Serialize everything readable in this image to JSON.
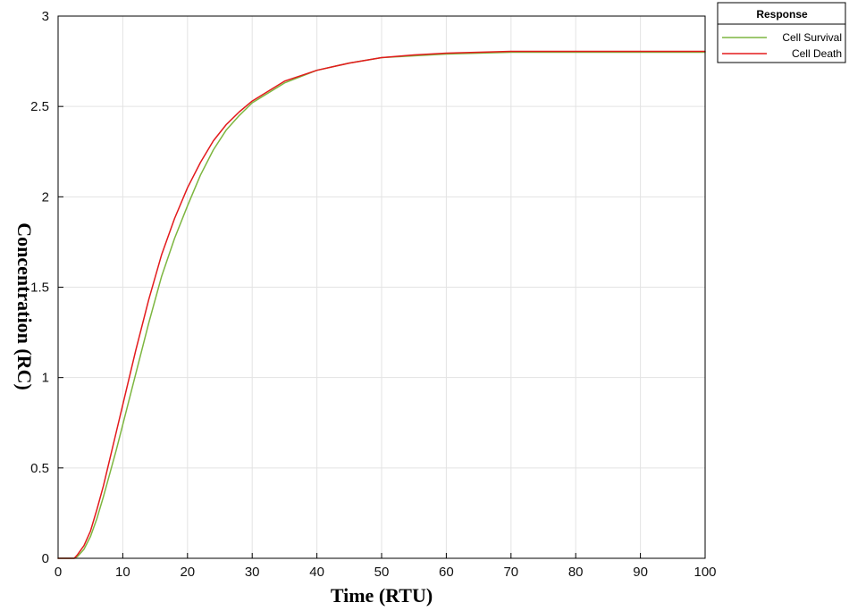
{
  "chart_data": {
    "type": "line",
    "xlabel": "Time (RTU)",
    "ylabel": "Concentration (RC)",
    "xlim": [
      0,
      100
    ],
    "ylim": [
      0,
      3
    ],
    "x_ticks": [
      0,
      10,
      20,
      30,
      40,
      50,
      60,
      70,
      80,
      90,
      100
    ],
    "y_ticks": [
      0,
      0.5,
      1,
      1.5,
      2,
      2.5,
      3
    ],
    "y_tick_labels": [
      "0",
      "0.5",
      "1",
      "1.5",
      "2",
      "2.5",
      "3"
    ],
    "grid": true,
    "legend": {
      "title": "Response",
      "placement": "outside top-right"
    },
    "x": [
      0,
      2.5,
      3,
      4,
      5,
      6,
      7,
      8,
      9,
      10,
      12,
      14,
      16,
      18,
      20,
      22,
      24,
      26,
      28,
      30,
      35,
      40,
      45,
      50,
      55,
      60,
      65,
      70,
      80,
      90,
      100
    ],
    "series": [
      {
        "name": "Cell Survival",
        "color": "#7db640",
        "values": [
          0,
          0,
          0.01,
          0.05,
          0.12,
          0.22,
          0.34,
          0.47,
          0.6,
          0.74,
          1.02,
          1.3,
          1.56,
          1.77,
          1.95,
          2.12,
          2.26,
          2.37,
          2.45,
          2.52,
          2.63,
          2.7,
          2.74,
          2.77,
          2.78,
          2.79,
          2.795,
          2.8,
          2.8,
          2.8,
          2.8
        ]
      },
      {
        "name": "Cell Death",
        "color": "#e31a1c",
        "values": [
          0,
          0,
          0.02,
          0.07,
          0.15,
          0.27,
          0.4,
          0.55,
          0.7,
          0.85,
          1.15,
          1.43,
          1.68,
          1.88,
          2.05,
          2.19,
          2.31,
          2.4,
          2.47,
          2.53,
          2.64,
          2.7,
          2.74,
          2.77,
          2.785,
          2.795,
          2.8,
          2.805,
          2.805,
          2.805,
          2.805
        ]
      }
    ]
  }
}
